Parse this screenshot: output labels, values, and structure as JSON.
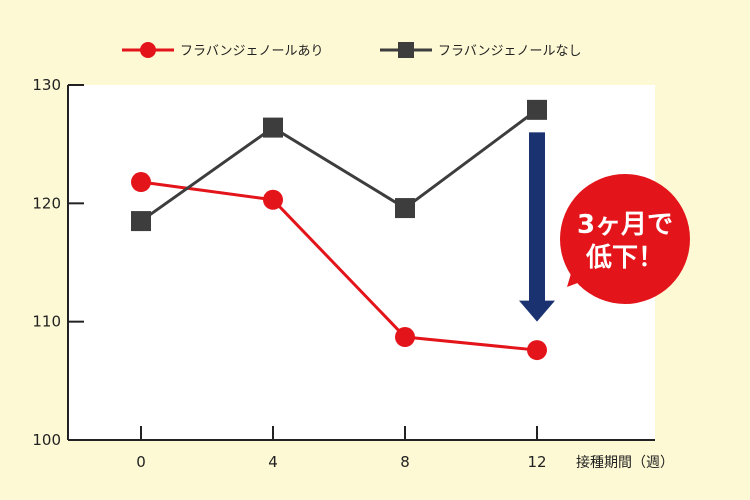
{
  "chart_data": {
    "type": "line",
    "x": [
      0,
      4,
      8,
      12
    ],
    "xlabel": "接種期間（週）",
    "ylabel": "",
    "ylim": [
      100,
      130
    ],
    "yticks": [
      100,
      110,
      120,
      130
    ],
    "grid": false,
    "legend_position": "top",
    "series": [
      {
        "name": "フラバンジェノールあり",
        "values": [
          121.8,
          120.3,
          108.7,
          107.6
        ],
        "color": "#e3141a",
        "marker": "circle"
      },
      {
        "name": "フラバンジェノールなし",
        "values": [
          118.5,
          126.4,
          119.6,
          127.9
        ],
        "color": "#3d3d3d",
        "marker": "square"
      }
    ],
    "annotation": {
      "lines": [
        "3ヶ月で",
        "低下！"
      ],
      "color": "#e3141a",
      "arrow_color": "#1a3370",
      "arrow_from": 126.0,
      "arrow_to": 110.0
    }
  }
}
